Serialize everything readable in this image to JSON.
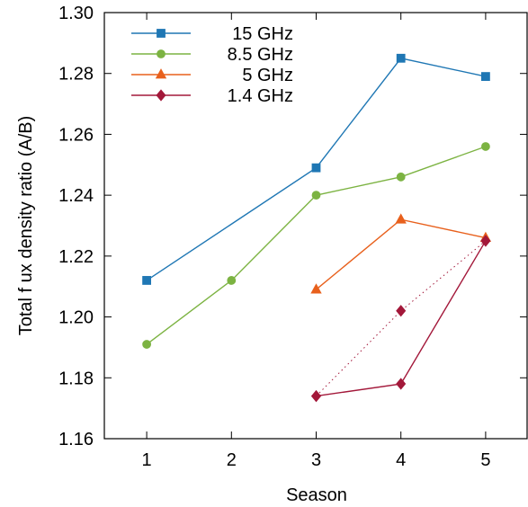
{
  "chart_data": {
    "type": "line",
    "xlabel": "Season",
    "ylabel": "Total f ux density ratio (A/B)",
    "xlim": [
      0.5,
      5.5
    ],
    "ylim": [
      1.16,
      1.3
    ],
    "xticks": [
      1,
      2,
      3,
      4,
      5
    ],
    "yticks": [
      1.16,
      1.18,
      1.2,
      1.22,
      1.24,
      1.26,
      1.28,
      1.3
    ],
    "ytick_labels": [
      "1.16",
      "1.18",
      "1.20",
      "1.22",
      "1.24",
      "1.26",
      "1.28",
      "1.30"
    ],
    "grid": false,
    "legend_position": "top-left",
    "series": [
      {
        "name": "15 GHz",
        "color": "#1f77b4",
        "marker": "square",
        "x": [
          1,
          3,
          4,
          5
        ],
        "y": [
          1.212,
          1.249,
          1.285,
          1.279
        ]
      },
      {
        "name": "8.5 GHz",
        "color": "#7cb342",
        "marker": "circle",
        "x": [
          1,
          2,
          3,
          4,
          5
        ],
        "y": [
          1.191,
          1.212,
          1.24,
          1.246,
          1.256
        ]
      },
      {
        "name": "5 GHz",
        "color": "#e8601c",
        "marker": "triangle",
        "x": [
          3,
          4,
          5
        ],
        "y": [
          1.209,
          1.232,
          1.226
        ]
      },
      {
        "name": "1.4 GHz",
        "color": "#a3183a",
        "marker": "diamond",
        "x": [
          3,
          4,
          5
        ],
        "y": [
          1.174,
          1.178,
          1.225
        ]
      }
    ],
    "extra_series": [
      {
        "color": "#a3183a",
        "marker": "diamond",
        "style": "dotted",
        "x": [
          3,
          4,
          5
        ],
        "y": [
          1.174,
          1.202,
          1.225
        ]
      }
    ]
  }
}
